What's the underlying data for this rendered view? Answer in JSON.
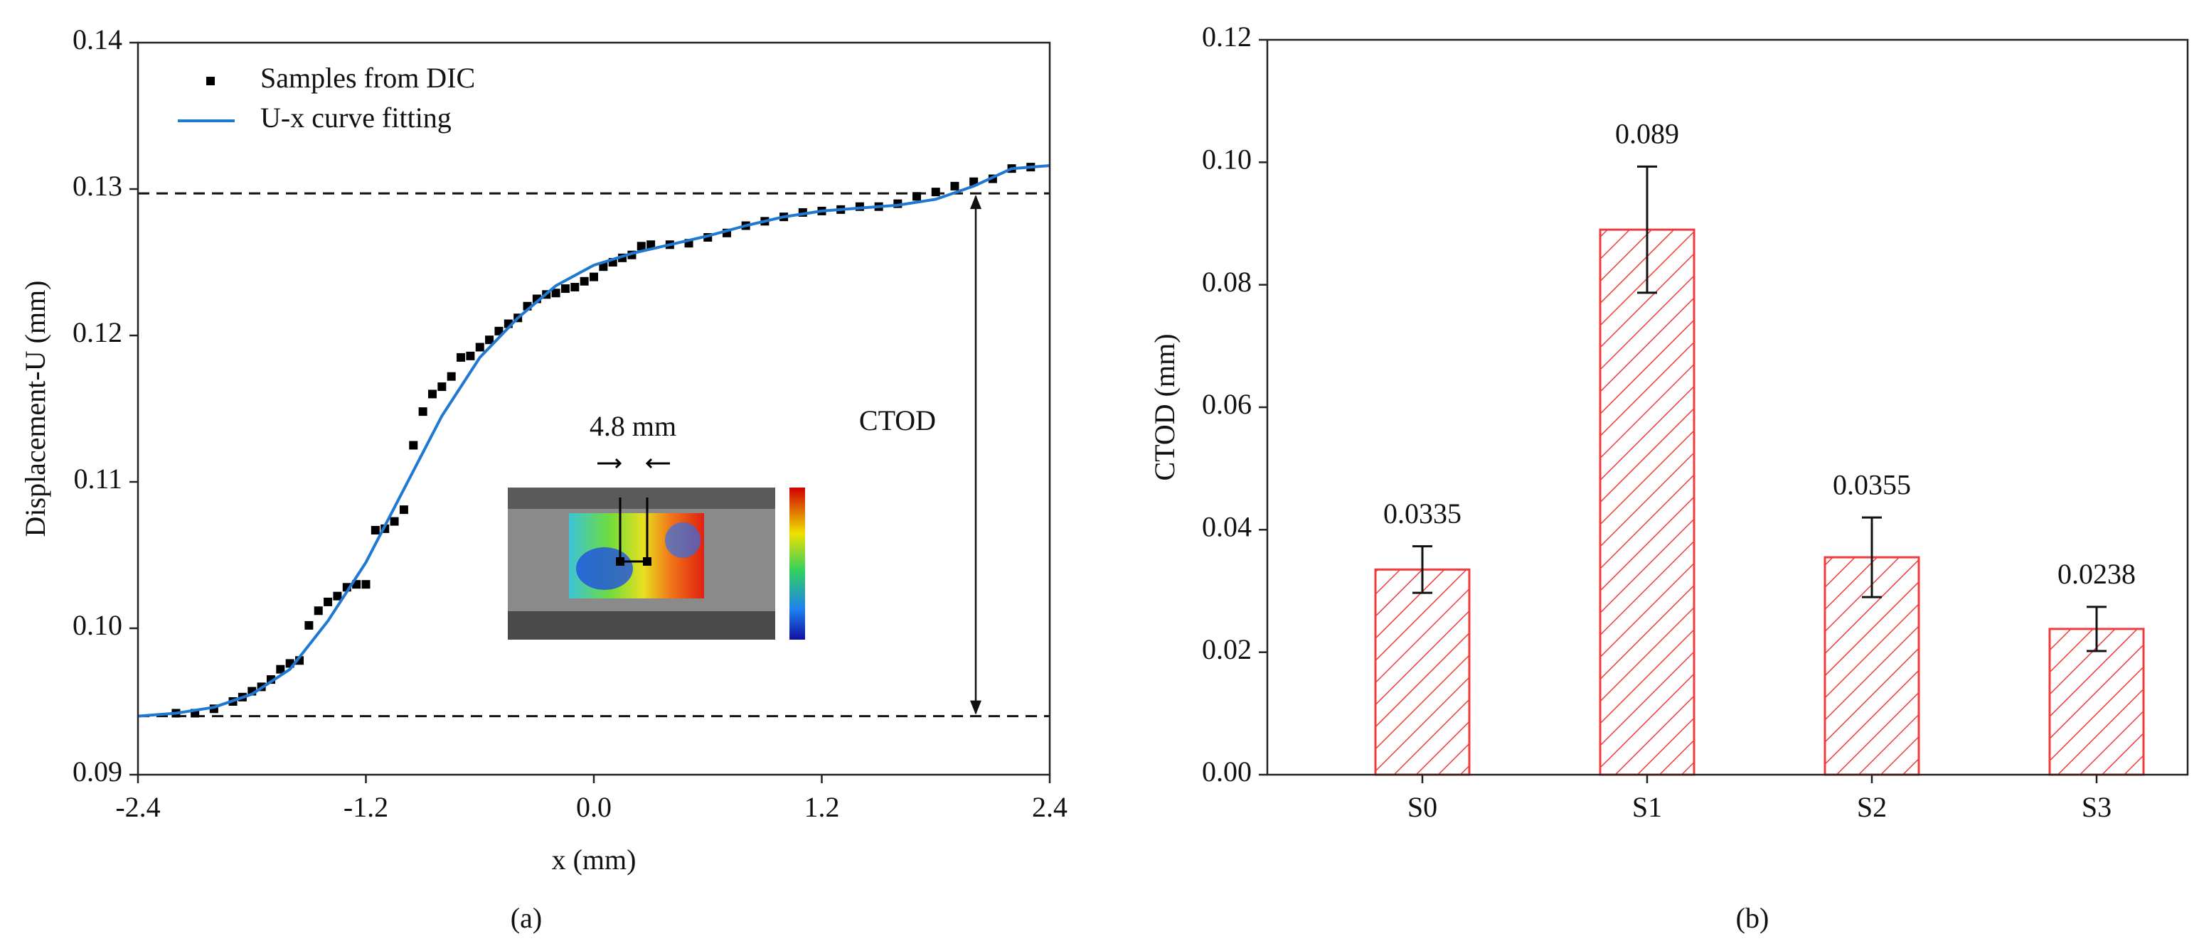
{
  "chart_data": [
    {
      "type": "line",
      "caption": "(a)",
      "xlabel": "x (mm)",
      "ylabel": "Displacement-U (mm)",
      "xlim": [
        -2.4,
        2.4
      ],
      "xticks": [
        -2.4,
        -1.2,
        {
          "value": 0,
          "label": "0.0"
        },
        1.2,
        2.4
      ],
      "ylim": [
        0.09,
        0.14
      ],
      "yticks": [
        0.09,
        {
          "value": 0.1,
          "label": "0.10"
        },
        0.11,
        0.12,
        0.13,
        0.14
      ],
      "hlines": [
        0.1297,
        0.094
      ],
      "hline_style": "dashed",
      "annotations": [
        "CTOD",
        "4.8 mm"
      ],
      "legend": "upper left",
      "series": [
        {
          "name": "Samples from DIC",
          "color": "#000000",
          "mode": "markers",
          "x": [
            -2.2,
            -2.1,
            -2.0,
            -1.9,
            -1.85,
            -1.8,
            -1.75,
            -1.7,
            -1.65,
            -1.6,
            -1.55,
            -1.5,
            -1.45,
            -1.4,
            -1.35,
            -1.3,
            -1.25,
            -1.2,
            -1.15,
            -1.1,
            -1.05,
            -1.0,
            -0.95,
            -0.9,
            -0.85,
            -0.8,
            -0.75,
            -0.7,
            -0.65,
            -0.6,
            -0.55,
            -0.5,
            -0.45,
            -0.4,
            -0.35,
            -0.3,
            -0.25,
            -0.2,
            -0.15,
            -0.1,
            -0.05,
            0.0,
            0.05,
            0.1,
            0.15,
            0.2,
            0.25,
            0.3,
            0.4,
            0.5,
            0.6,
            0.7,
            0.8,
            0.9,
            1.0,
            1.1,
            1.2,
            1.3,
            1.4,
            1.5,
            1.6,
            1.7,
            1.8,
            1.9,
            2.0,
            2.1,
            2.2,
            2.3
          ],
          "values": [
            0.0942,
            0.0942,
            0.0945,
            0.095,
            0.0953,
            0.0957,
            0.096,
            0.0965,
            0.0972,
            0.0976,
            0.0978,
            0.1002,
            0.1012,
            0.1018,
            0.1022,
            0.1028,
            0.103,
            0.103,
            0.1067,
            0.1068,
            0.1073,
            0.1081,
            0.1125,
            0.1148,
            0.116,
            0.1165,
            0.1172,
            0.1185,
            0.1186,
            0.1192,
            0.1197,
            0.1203,
            0.1208,
            0.1212,
            0.122,
            0.1225,
            0.1228,
            0.1229,
            0.1232,
            0.1233,
            0.1237,
            0.124,
            0.1247,
            0.125,
            0.1253,
            0.1255,
            0.1261,
            0.1262,
            0.1262,
            0.1263,
            0.1267,
            0.127,
            0.1275,
            0.1278,
            0.1281,
            0.1284,
            0.1285,
            0.1286,
            0.1288,
            0.1288,
            0.129,
            0.1295,
            0.1298,
            0.1302,
            0.1305,
            0.1307,
            0.1314,
            0.1315
          ]
        },
        {
          "name": "U-x curve fitting",
          "color": "#1f78d1",
          "mode": "lines",
          "x": [
            -2.4,
            -2.2,
            -2.0,
            -1.8,
            -1.6,
            -1.4,
            -1.2,
            -1.0,
            -0.8,
            -0.6,
            -0.4,
            -0.2,
            0.0,
            0.2,
            0.4,
            0.6,
            0.8,
            1.0,
            1.2,
            1.4,
            1.6,
            1.8,
            2.0,
            2.2,
            2.4
          ],
          "values": [
            0.094,
            0.0942,
            0.0946,
            0.0955,
            0.0972,
            0.1005,
            0.1045,
            0.1095,
            0.1145,
            0.1185,
            0.1212,
            0.1234,
            0.1248,
            0.1256,
            0.1262,
            0.1268,
            0.1275,
            0.1281,
            0.1285,
            0.1287,
            0.1289,
            0.1293,
            0.1302,
            0.1314,
            0.1316
          ]
        }
      ]
    },
    {
      "type": "bar",
      "caption": "(b)",
      "ylabel": "CTOD (mm)",
      "categories": [
        "S0",
        "S1",
        "S2",
        "S3"
      ],
      "values": [
        0.0335,
        0.089,
        0.0355,
        0.0238
      ],
      "errors": [
        0.0038,
        0.0103,
        0.0065,
        0.0036
      ],
      "color": "#f03c3c",
      "fill_pattern": "hatch",
      "ylim": [
        0,
        0.12
      ],
      "yticks": [
        {
          "value": 0,
          "label": "0.00"
        },
        0.02,
        0.04,
        0.06,
        0.08,
        {
          "value": 0.1,
          "label": "0.10"
        },
        0.12
      ]
    }
  ]
}
